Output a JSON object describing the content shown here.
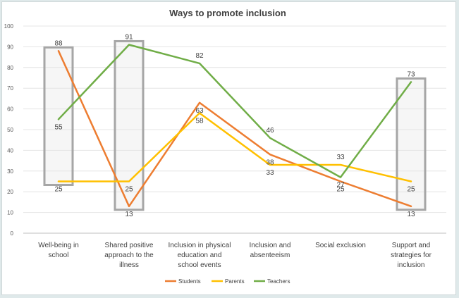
{
  "chart_data": {
    "type": "line",
    "title": "Ways to promote inclusion",
    "xlabel": "",
    "ylabel": "",
    "ylim": [
      0,
      100
    ],
    "yticks": [
      0,
      10,
      20,
      30,
      40,
      50,
      60,
      70,
      80,
      90,
      100
    ],
    "categories": [
      [
        "Well-being in",
        "school"
      ],
      [
        "Shared positive",
        "approach to the",
        "illness"
      ],
      [
        "Inclusion in physical",
        "education and",
        "school events"
      ],
      [
        "Inclusion and",
        "absenteeism"
      ],
      [
        "Social exclusion"
      ],
      [
        "Support and",
        "strategies for",
        "inclusion"
      ]
    ],
    "series": [
      {
        "name": "Students",
        "color": "#ed7d31",
        "values": [
          88,
          13,
          63,
          38,
          25,
          13
        ]
      },
      {
        "name": "Parents",
        "color": "#ffc000",
        "values": [
          25,
          25,
          58,
          33,
          33,
          25
        ]
      },
      {
        "name": "Teachers",
        "color": "#70ad47",
        "values": [
          55,
          91,
          82,
          46,
          27,
          73
        ]
      }
    ],
    "data_labels": [
      {
        "category": 0,
        "value": 88
      },
      {
        "category": 0,
        "value": 55
      },
      {
        "category": 0,
        "value": 25
      },
      {
        "category": 1,
        "value": 91
      },
      {
        "category": 1,
        "value": 25
      },
      {
        "category": 1,
        "value": 13
      },
      {
        "category": 2,
        "value": 82
      },
      {
        "category": 2,
        "value": 63
      },
      {
        "category": 2,
        "value": 58
      },
      {
        "category": 3,
        "value": 46
      },
      {
        "category": 3,
        "value": 38
      },
      {
        "category": 3,
        "value": 33
      },
      {
        "category": 4,
        "value": 33
      },
      {
        "category": 4,
        "value": 27
      },
      {
        "category": 4,
        "value": 25
      },
      {
        "category": 5,
        "value": 73
      },
      {
        "category": 5,
        "value": 25
      },
      {
        "category": 5,
        "value": 13
      }
    ],
    "highlight_boxes": [
      0,
      1,
      5
    ],
    "grid": true,
    "legend": "bottom"
  }
}
